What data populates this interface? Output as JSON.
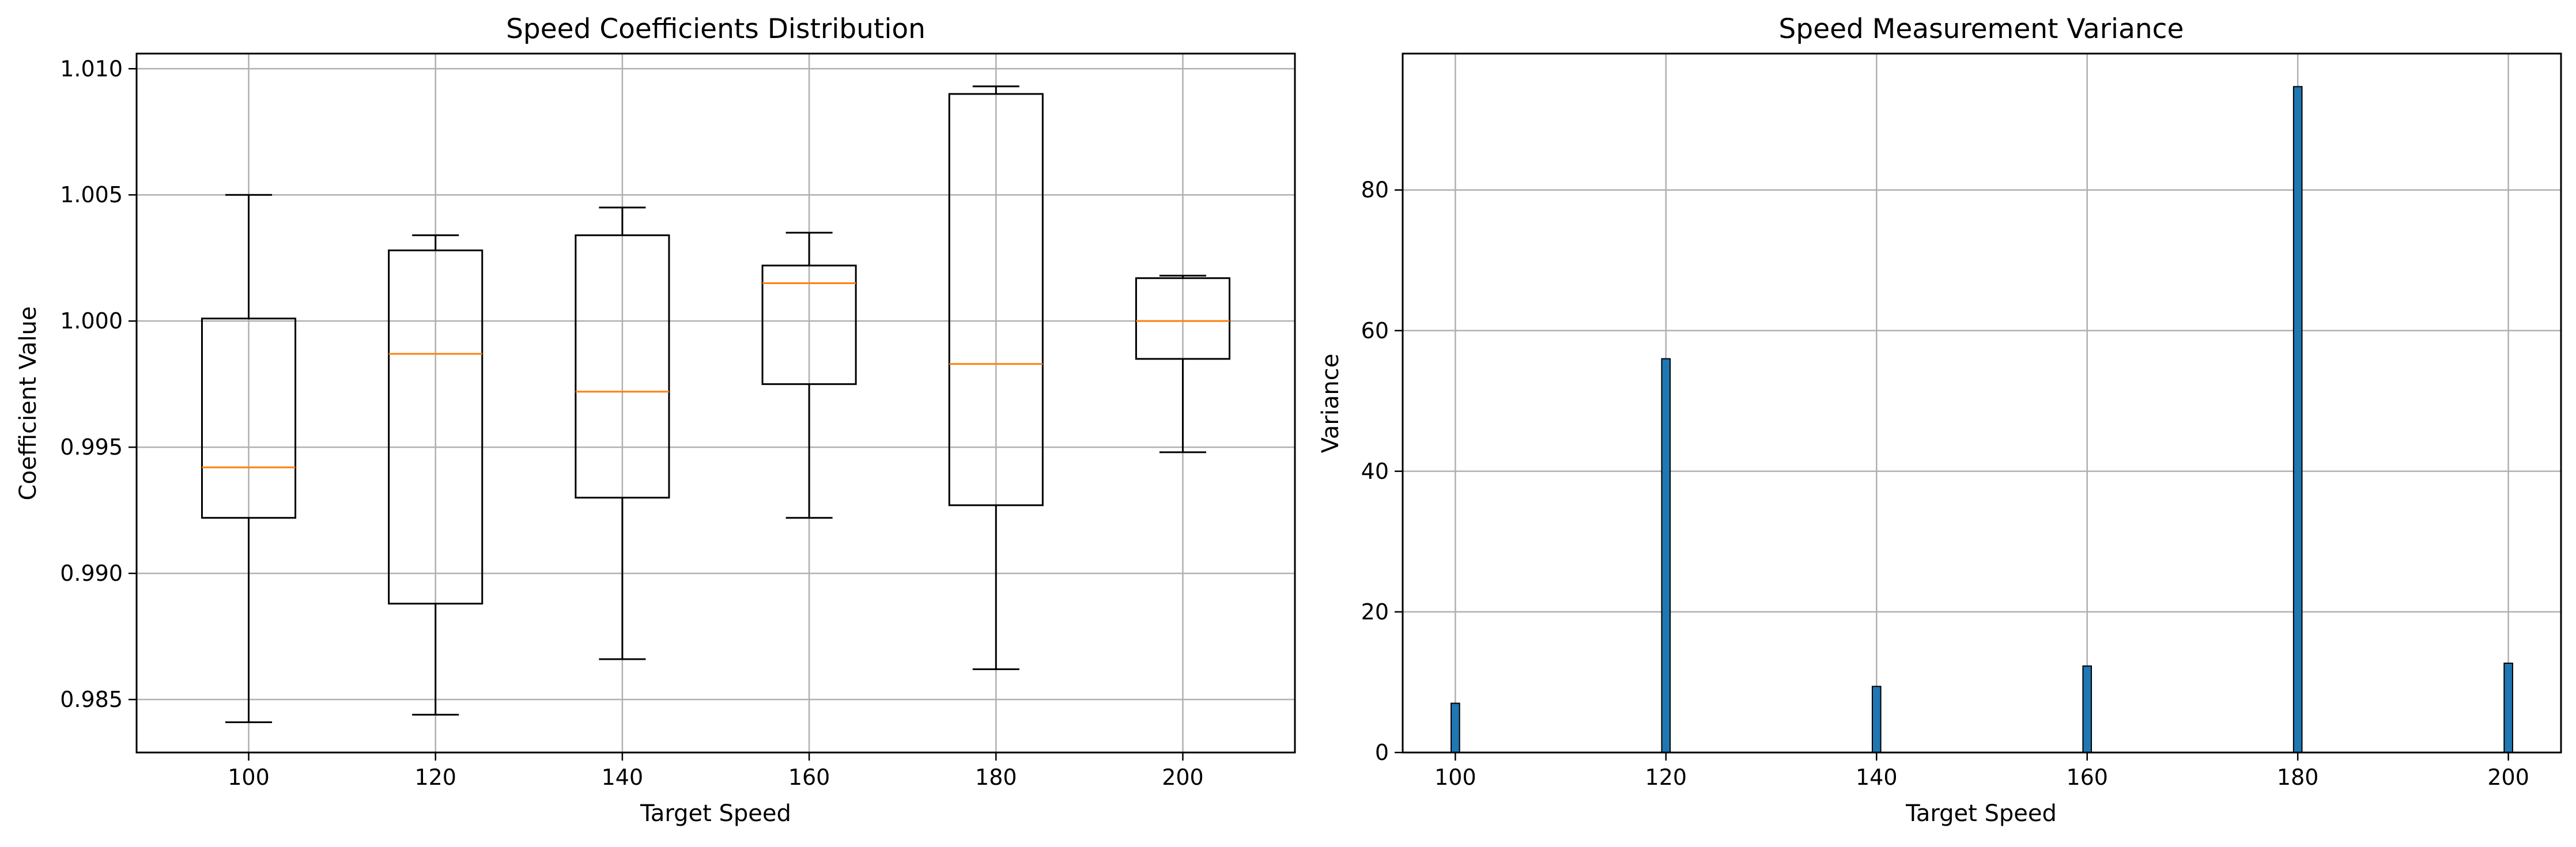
{
  "chart_data": [
    {
      "type": "box",
      "title": "Speed Coefficients Distribution",
      "xlabel": "Target Speed",
      "ylabel": "Coefficient Value",
      "categories": [
        "100",
        "120",
        "140",
        "160",
        "180",
        "200"
      ],
      "boxes": [
        {
          "category": "100",
          "whisker_low": 0.9841,
          "q1": 0.9922,
          "median": 0.9942,
          "q3": 1.0001,
          "whisker_high": 1.005
        },
        {
          "category": "120",
          "whisker_low": 0.9844,
          "q1": 0.9888,
          "median": 0.9987,
          "q3": 1.0028,
          "whisker_high": 1.0034
        },
        {
          "category": "140",
          "whisker_low": 0.9866,
          "q1": 0.993,
          "median": 0.9972,
          "q3": 1.0034,
          "whisker_high": 1.0045
        },
        {
          "category": "160",
          "whisker_low": 0.9922,
          "q1": 0.9975,
          "median": 1.0015,
          "q3": 1.0022,
          "whisker_high": 1.0035
        },
        {
          "category": "180",
          "whisker_low": 0.9862,
          "q1": 0.9927,
          "median": 0.9983,
          "q3": 1.009,
          "whisker_high": 1.0093
        },
        {
          "category": "200",
          "whisker_low": 0.9948,
          "q1": 0.9985,
          "median": 1.0,
          "q3": 1.0017,
          "whisker_high": 1.0018
        }
      ],
      "yticks": [
        0.985,
        0.99,
        0.995,
        1.0,
        1.005,
        1.01
      ],
      "ytick_labels": [
        "0.985",
        "0.990",
        "0.995",
        "1.000",
        "1.005",
        "1.010"
      ],
      "ylim": [
        0.9829,
        1.0106
      ],
      "grid": true,
      "colors": {
        "box": "#000000",
        "median": "#ff7f0e",
        "grid": "#b0b0b0"
      }
    },
    {
      "type": "bar",
      "title": "Speed Measurement Variance",
      "xlabel": "Target Speed",
      "ylabel": "Variance",
      "x": [
        100,
        120,
        140,
        160,
        180,
        200
      ],
      "values": [
        7.0,
        56.0,
        9.4,
        12.3,
        94.7,
        12.7
      ],
      "xticks": [
        100,
        120,
        140,
        160,
        180,
        200
      ],
      "xtick_labels": [
        "100",
        "120",
        "140",
        "160",
        "180",
        "200"
      ],
      "yticks": [
        0,
        20,
        40,
        60,
        80
      ],
      "ytick_labels": [
        "0",
        "20",
        "40",
        "60",
        "80"
      ],
      "xlim": [
        95,
        205
      ],
      "ylim": [
        0,
        99.4
      ],
      "bar_width": 0.8,
      "grid": true,
      "colors": {
        "bar": "#1f77b4",
        "edge": "#000000",
        "grid": "#b0b0b0"
      }
    }
  ]
}
